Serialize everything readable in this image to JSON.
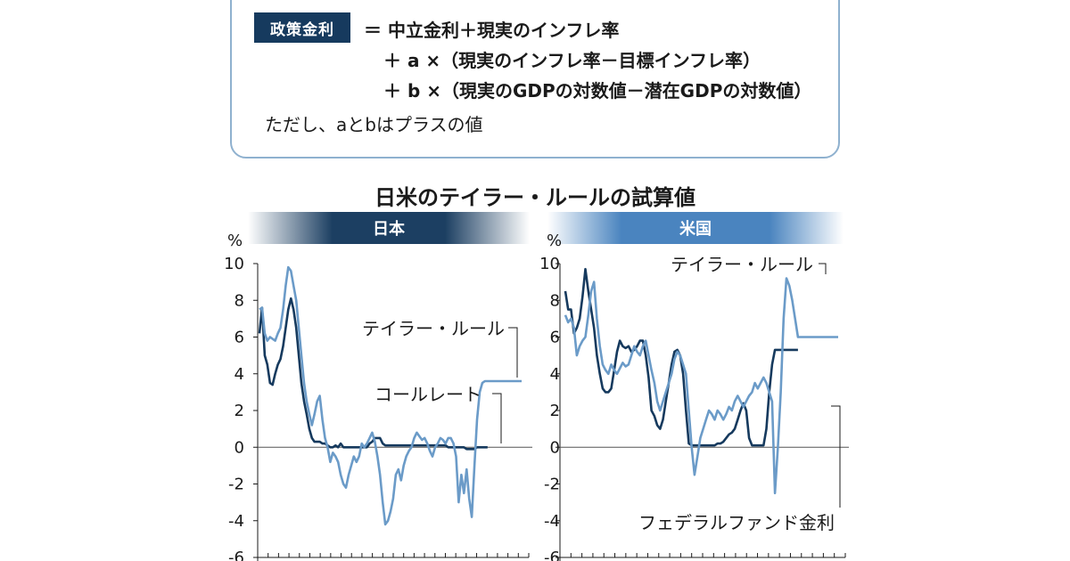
{
  "formula": {
    "label": "政策金利",
    "line1": "＝ 中立金利＋現実のインフレ率",
    "line2": "＋ a ×（現実のインフレ率－目標インフレ率）",
    "line3": "＋ b ×（現実のGDPの対数値－潜在GDPの対数値）",
    "note": "ただし、aとbはプラスの値"
  },
  "colors": {
    "navy": "#163a5e",
    "light": "#6b9bc8",
    "box_border": "#8fb1cf"
  },
  "chart_data": [
    {
      "type": "line",
      "title": "日米のテイラー・ルールの試算値",
      "panel": "日本",
      "ylabel": "%",
      "ylim": [
        -6,
        10
      ],
      "yticks": [
        "10",
        "8",
        "6",
        "4",
        "2",
        "0",
        "-2",
        "-4",
        "-6"
      ],
      "grid": false,
      "series": [
        {
          "name": "テイラー・ルール",
          "color": "#6b9bc8",
          "x": [
            0,
            1,
            2,
            3,
            4,
            5,
            6,
            7,
            8,
            9,
            10,
            11,
            12,
            13,
            14,
            15,
            16,
            17,
            18,
            19,
            20,
            21,
            22,
            23,
            24,
            25,
            26,
            27,
            28,
            29,
            30,
            31,
            32,
            33,
            34,
            35,
            36,
            37,
            38,
            39,
            40,
            41,
            42,
            43,
            44,
            45,
            46,
            47,
            48,
            49,
            50,
            51,
            52,
            53,
            54,
            55,
            56,
            57,
            58,
            59,
            60,
            61,
            62,
            63,
            64,
            65,
            66,
            67,
            68,
            69,
            70,
            71,
            72,
            73,
            74,
            75,
            76,
            77,
            78,
            79,
            80,
            81,
            82,
            83,
            84,
            85,
            86,
            87,
            88,
            89,
            90,
            91,
            92,
            93,
            94,
            95,
            96,
            97,
            98,
            99,
            100
          ],
          "values": [
            7.5,
            7.6,
            6.2,
            5.8,
            6.0,
            5.9,
            5.8,
            6.2,
            6.5,
            7.5,
            8.8,
            9.8,
            9.6,
            8.8,
            8.0,
            6.5,
            5.0,
            3.5,
            2.5,
            1.8,
            1.2,
            1.8,
            2.5,
            2.8,
            1.5,
            0.5,
            0.0,
            -0.8,
            -0.3,
            -0.5,
            -0.8,
            -1.5,
            -2.0,
            -2.2,
            -1.5,
            -1.0,
            -0.5,
            -0.8,
            -0.5,
            0.2,
            0.0,
            0.2,
            0.5,
            0.8,
            0.3,
            -0.5,
            -1.5,
            -3.0,
            -4.2,
            -4.0,
            -3.5,
            -2.8,
            -1.5,
            -1.2,
            -1.8,
            -1.0,
            -0.5,
            -0.2,
            0.0,
            0.5,
            0.8,
            0.6,
            0.4,
            0.5,
            0.2,
            -0.2,
            -0.5,
            0.0,
            0.2,
            0.5,
            0.4,
            0.2,
            0.5,
            0.5,
            0.2,
            -0.5,
            -3.0,
            -1.5,
            -2.5,
            -1.2,
            -2.8,
            -3.8,
            -1.0,
            1.5,
            3.0,
            3.5,
            3.6,
            3.6,
            3.6,
            3.6,
            3.6,
            3.6,
            3.6,
            3.6,
            3.6,
            3.6,
            3.6,
            3.6,
            3.6,
            3.6,
            3.6
          ]
        },
        {
          "name": "コールレート",
          "color": "#163a5e",
          "x": [
            0,
            1,
            2,
            3,
            4,
            5,
            6,
            7,
            8,
            9,
            10,
            11,
            12,
            13,
            14,
            15,
            16,
            17,
            18,
            19,
            20,
            21,
            22,
            23,
            24,
            25,
            26,
            27,
            28,
            29,
            30,
            31,
            32,
            33,
            34,
            35,
            36,
            37,
            38,
            39,
            40,
            41,
            42,
            43,
            44,
            45,
            46,
            47,
            48,
            49,
            50,
            51,
            52,
            53,
            54,
            55,
            56,
            57,
            58,
            59,
            60,
            61,
            62,
            63,
            64,
            65,
            66,
            67,
            68,
            69,
            70,
            71,
            72,
            73,
            74,
            75,
            76,
            77,
            78,
            79,
            80,
            81,
            82,
            83,
            84,
            85,
            86,
            87
          ],
          "values": [
            6.2,
            7.6,
            5.0,
            4.5,
            3.5,
            3.4,
            4.0,
            4.5,
            4.8,
            5.5,
            6.5,
            7.5,
            8.1,
            7.5,
            6.5,
            5.0,
            3.5,
            2.5,
            1.8,
            1.0,
            0.5,
            0.3,
            0.3,
            0.3,
            0.2,
            0.2,
            0.1,
            0.0,
            0.0,
            0.1,
            0.0,
            0.2,
            0.0,
            0.0,
            0.0,
            0.0,
            0.0,
            0.0,
            0.0,
            0.0,
            0.0,
            0.0,
            0.2,
            0.3,
            0.5,
            0.5,
            0.5,
            0.2,
            0.1,
            0.1,
            0.1,
            0.1,
            0.1,
            0.1,
            0.1,
            0.1,
            0.1,
            0.1,
            0.1,
            0.1,
            0.1,
            0.1,
            0.1,
            0.1,
            0.1,
            0.1,
            0.1,
            0.1,
            0.1,
            0.1,
            0.1,
            0.1,
            0.0,
            0.0,
            0.0,
            0.0,
            0.0,
            0.0,
            0.0,
            -0.1,
            -0.1,
            -0.1,
            -0.1,
            0.0,
            0.0,
            0.0,
            0.0,
            0.0
          ]
        }
      ]
    },
    {
      "type": "line",
      "panel": "米国",
      "ylabel": "%",
      "ylim": [
        -6,
        10
      ],
      "yticks": [
        "10",
        "8",
        "6",
        "4",
        "2",
        "0",
        "-2",
        "-4",
        "-6"
      ],
      "grid": false,
      "series": [
        {
          "name": "テイラー・ルール",
          "color": "#6b9bc8",
          "x": [
            0,
            1,
            2,
            3,
            4,
            5,
            6,
            7,
            8,
            9,
            10,
            11,
            12,
            13,
            14,
            15,
            16,
            17,
            18,
            19,
            20,
            21,
            22,
            23,
            24,
            25,
            26,
            27,
            28,
            29,
            30,
            31,
            32,
            33,
            34,
            35,
            36,
            37,
            38,
            39,
            40,
            41,
            42,
            43,
            44,
            45,
            46,
            47,
            48,
            49,
            50,
            51,
            52,
            53,
            54,
            55,
            56,
            57,
            58,
            59,
            60,
            61,
            62,
            63,
            64,
            65,
            66,
            67,
            68,
            69,
            70,
            71,
            72,
            73,
            74,
            75,
            76,
            77,
            78,
            79,
            80,
            81,
            82,
            83,
            84,
            85,
            86,
            87,
            88,
            89,
            90,
            91,
            92,
            93,
            94,
            95
          ],
          "values": [
            7.2,
            6.8,
            7.0,
            6.5,
            5.0,
            5.5,
            5.8,
            6.0,
            7.2,
            8.5,
            9.0,
            7.0,
            5.5,
            4.5,
            4.2,
            4.0,
            4.5,
            4.2,
            4.0,
            4.3,
            4.6,
            4.4,
            4.5,
            5.0,
            5.5,
            5.2,
            5.0,
            5.5,
            5.8,
            5.0,
            4.2,
            3.5,
            2.5,
            2.0,
            2.5,
            3.0,
            3.5,
            4.0,
            4.8,
            5.2,
            5.0,
            4.5,
            4.0,
            2.0,
            0.0,
            -1.5,
            -0.5,
            0.5,
            1.0,
            1.5,
            2.0,
            1.8,
            1.5,
            2.0,
            1.8,
            1.5,
            1.8,
            2.2,
            2.0,
            2.5,
            2.8,
            2.5,
            2.2,
            2.5,
            2.8,
            3.0,
            3.5,
            3.2,
            3.5,
            3.8,
            3.5,
            3.0,
            2.5,
            -2.5,
            0.0,
            3.0,
            7.0,
            9.2,
            8.8,
            8.0,
            7.0,
            6.0,
            6.0,
            6.0,
            6.0,
            6.0,
            6.0,
            6.0,
            6.0,
            6.0,
            6.0,
            6.0,
            6.0,
            6.0,
            6.0,
            6.0
          ]
        },
        {
          "name": "フェデラルファンド金利",
          "color": "#163a5e",
          "x": [
            0,
            1,
            2,
            3,
            4,
            5,
            6,
            7,
            8,
            9,
            10,
            11,
            12,
            13,
            14,
            15,
            16,
            17,
            18,
            19,
            20,
            21,
            22,
            23,
            24,
            25,
            26,
            27,
            28,
            29,
            30,
            31,
            32,
            33,
            34,
            35,
            36,
            37,
            38,
            39,
            40,
            41,
            42,
            43,
            44,
            45,
            46,
            47,
            48,
            49,
            50,
            51,
            52,
            53,
            54,
            55,
            56,
            57,
            58,
            59,
            60,
            61,
            62,
            63,
            64,
            65,
            66,
            67,
            68,
            69,
            70,
            71,
            72,
            73,
            74,
            75,
            76,
            77,
            78,
            79,
            80,
            81
          ],
          "values": [
            8.5,
            7.5,
            7.5,
            6.2,
            6.5,
            7.0,
            8.2,
            9.7,
            8.5,
            7.5,
            6.5,
            5.0,
            4.0,
            3.2,
            3.0,
            3.0,
            3.2,
            4.2,
            5.2,
            5.8,
            5.5,
            5.4,
            5.5,
            5.2,
            5.3,
            5.5,
            5.8,
            5.8,
            5.0,
            3.8,
            2.0,
            1.7,
            1.2,
            1.0,
            1.5,
            2.5,
            3.5,
            4.5,
            5.2,
            5.3,
            5.0,
            4.0,
            2.0,
            0.2,
            0.1,
            0.1,
            0.1,
            0.1,
            0.1,
            0.1,
            0.1,
            0.1,
            0.1,
            0.2,
            0.2,
            0.3,
            0.5,
            0.7,
            0.8,
            1.0,
            1.5,
            2.0,
            2.4,
            2.0,
            0.5,
            0.1,
            0.1,
            0.1,
            0.1,
            0.1,
            1.0,
            3.0,
            4.5,
            5.3,
            5.3,
            5.3,
            5.3,
            5.3,
            5.3,
            5.3,
            5.3,
            5.3
          ]
        }
      ]
    }
  ]
}
